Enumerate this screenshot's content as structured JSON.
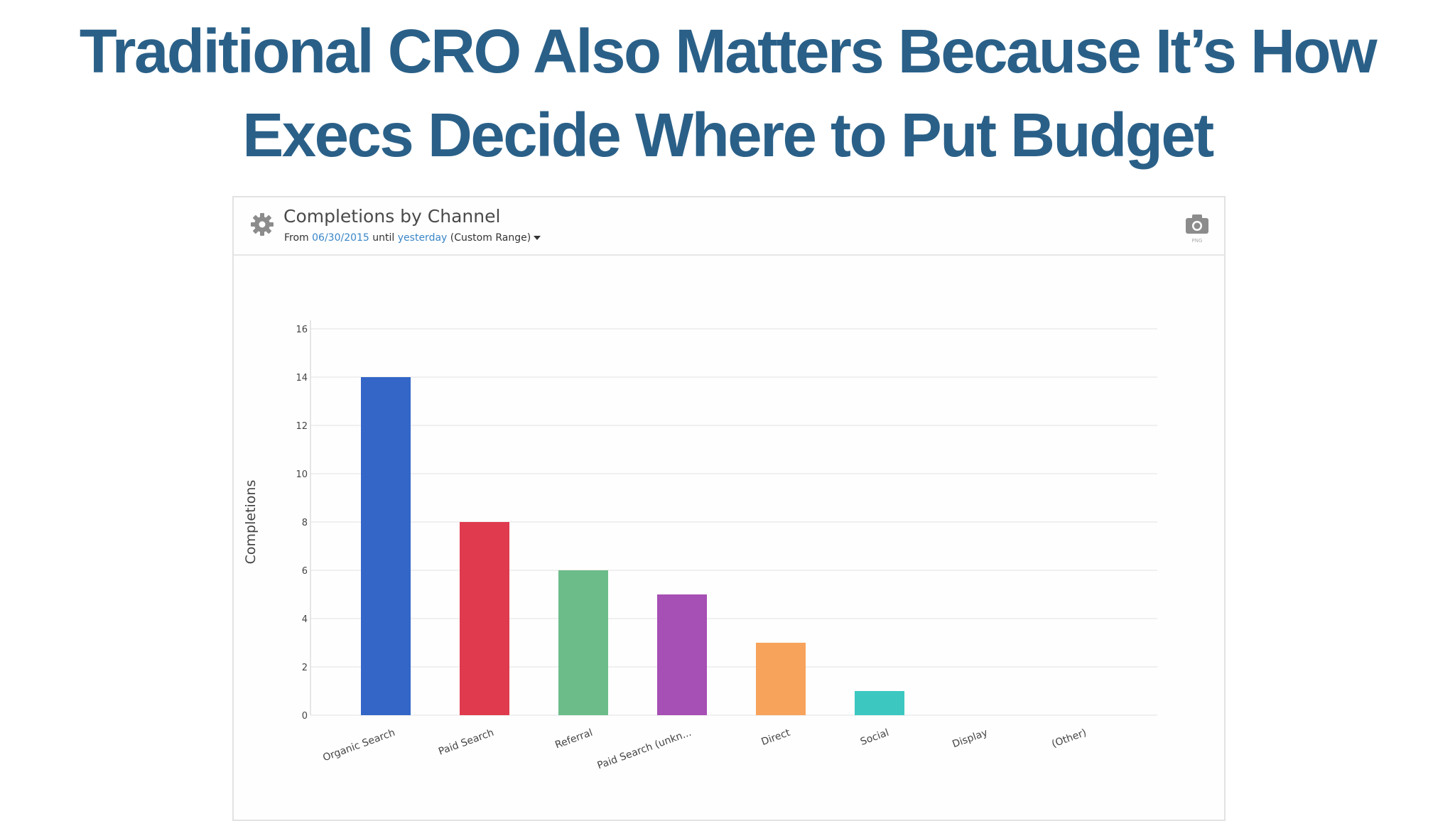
{
  "slide": {
    "title_line1": "Traditional CRO Also Matters Because It’s How",
    "title_line2": "Execs Decide Where to Put Budget"
  },
  "widget": {
    "title": "Completions by Channel",
    "subtitle_from": "From",
    "from_date": "06/30/2015",
    "subtitle_until": "until",
    "until_date": "yesterday",
    "range_label": "(Custom Range)",
    "settings_icon": "gear-icon",
    "export_icon": "camera-icon",
    "export_label": "PNG"
  },
  "chart_data": {
    "type": "bar",
    "title": "Completions by Channel",
    "xlabel": "",
    "ylabel": "Completions",
    "ylim": [
      0,
      16
    ],
    "yticks": [
      0,
      2,
      4,
      6,
      8,
      10,
      12,
      14,
      16
    ],
    "grid": true,
    "categories": [
      "Organic Search",
      "Paid Search",
      "Referral",
      "Paid Search (unkn...",
      "Direct",
      "Social",
      "Display",
      "(Other)"
    ],
    "values": [
      14,
      8,
      6,
      5,
      3,
      1,
      0,
      0
    ],
    "colors": [
      "#3366c7",
      "#e03a4e",
      "#6cbc8a",
      "#a64fb4",
      "#f7a35c",
      "#3cc8c0",
      "#999999",
      "#999999"
    ]
  }
}
